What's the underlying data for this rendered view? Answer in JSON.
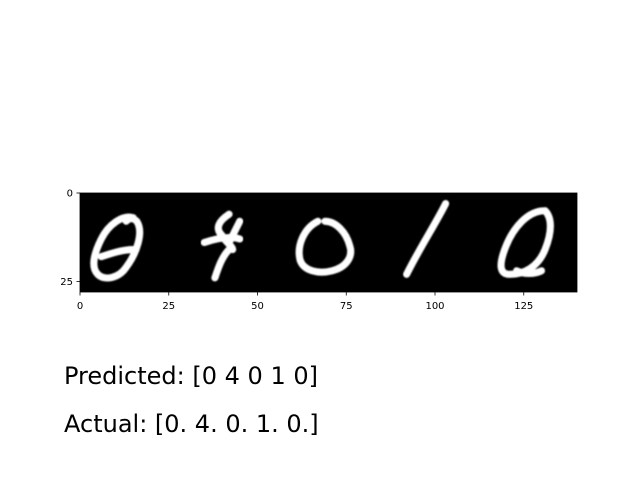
{
  "chart_data": {
    "type": "image",
    "xlabel": "",
    "ylabel": "",
    "xlim": [
      0,
      140
    ],
    "ylim": [
      28,
      0
    ],
    "x_ticks": [
      0,
      25,
      50,
      75,
      100,
      125
    ],
    "y_ticks": [
      0,
      25
    ],
    "grid": false,
    "colormap": "gray",
    "digits": [
      {
        "label": 0,
        "x_offset": 0
      },
      {
        "label": 4,
        "x_offset": 28
      },
      {
        "label": 0,
        "x_offset": 56
      },
      {
        "label": 1,
        "x_offset": 84
      },
      {
        "label": 0,
        "x_offset": 112
      }
    ]
  },
  "captions": {
    "predicted": "Predicted: [0 4 0 1 0]",
    "actual": "Actual: [0. 4. 0. 1. 0.]"
  },
  "colors": {
    "background": "#000000",
    "stroke": "#ffffff",
    "axis": "#000000"
  }
}
